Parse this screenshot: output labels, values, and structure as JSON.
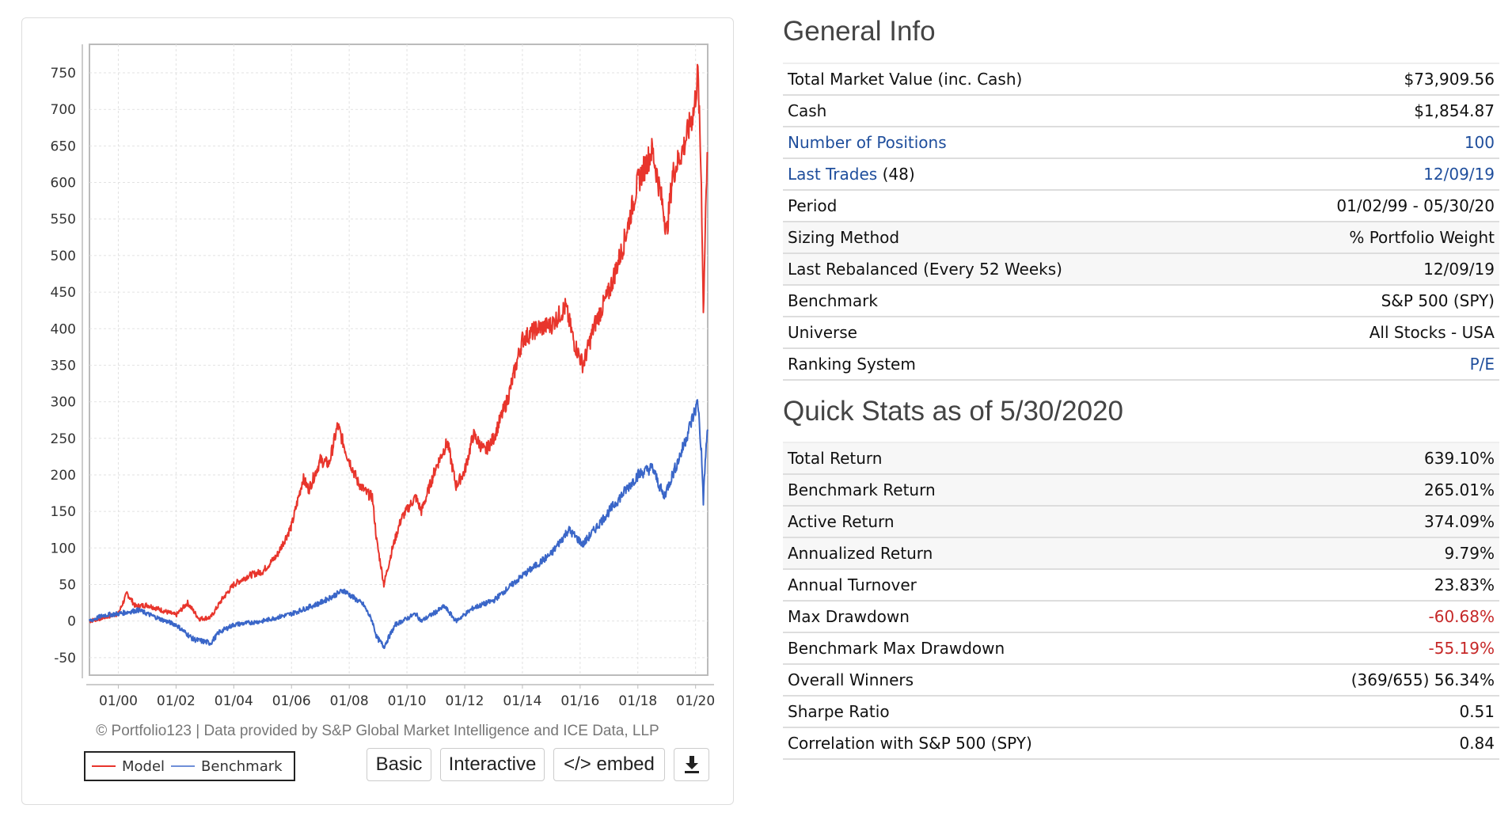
{
  "chart_data": {
    "type": "line",
    "title": "",
    "xlabel": "",
    "ylabel": "",
    "xlim": [
      1999.0,
      2020.42
    ],
    "ylim": [
      -74,
      789
    ],
    "grid": true,
    "yticks": [
      -50,
      0,
      50,
      100,
      150,
      200,
      250,
      300,
      350,
      400,
      450,
      500,
      550,
      600,
      650,
      700,
      750
    ],
    "xticks": [
      {
        "x": 2000,
        "label": "01/00"
      },
      {
        "x": 2002,
        "label": "01/02"
      },
      {
        "x": 2004,
        "label": "01/04"
      },
      {
        "x": 2006,
        "label": "01/06"
      },
      {
        "x": 2008,
        "label": "01/08"
      },
      {
        "x": 2010,
        "label": "01/10"
      },
      {
        "x": 2012,
        "label": "01/12"
      },
      {
        "x": 2014,
        "label": "01/14"
      },
      {
        "x": 2016,
        "label": "01/16"
      },
      {
        "x": 2018,
        "label": "01/18"
      },
      {
        "x": 2020,
        "label": "01/20"
      }
    ],
    "legend_placement": "bottom-left",
    "series": [
      {
        "name": "Model",
        "color": "#e8352c",
        "points": [
          [
            1999.0,
            0
          ],
          [
            1999.5,
            5
          ],
          [
            2000.0,
            10
          ],
          [
            2000.3,
            38
          ],
          [
            2000.6,
            20
          ],
          [
            2001.0,
            22
          ],
          [
            2001.5,
            15
          ],
          [
            2002.0,
            8
          ],
          [
            2002.4,
            25
          ],
          [
            2002.8,
            3
          ],
          [
            2003.2,
            5
          ],
          [
            2003.6,
            30
          ],
          [
            2004.0,
            50
          ],
          [
            2004.5,
            62
          ],
          [
            2005.0,
            68
          ],
          [
            2005.5,
            90
          ],
          [
            2006.0,
            130
          ],
          [
            2006.4,
            195
          ],
          [
            2006.6,
            180
          ],
          [
            2007.0,
            220
          ],
          [
            2007.3,
            215
          ],
          [
            2007.6,
            268
          ],
          [
            2007.9,
            230
          ],
          [
            2008.3,
            190
          ],
          [
            2008.6,
            175
          ],
          [
            2008.8,
            170
          ],
          [
            2008.95,
            110
          ],
          [
            2009.1,
            75
          ],
          [
            2009.2,
            50
          ],
          [
            2009.5,
            100
          ],
          [
            2009.8,
            140
          ],
          [
            2010.3,
            170
          ],
          [
            2010.5,
            150
          ],
          [
            2011.0,
            210
          ],
          [
            2011.4,
            245
          ],
          [
            2011.7,
            185
          ],
          [
            2012.0,
            205
          ],
          [
            2012.3,
            255
          ],
          [
            2012.7,
            232
          ],
          [
            2013.0,
            250
          ],
          [
            2013.5,
            305
          ],
          [
            2014.0,
            385
          ],
          [
            2014.5,
            400
          ],
          [
            2015.0,
            405
          ],
          [
            2015.5,
            430
          ],
          [
            2015.8,
            380
          ],
          [
            2016.1,
            350
          ],
          [
            2016.5,
            405
          ],
          [
            2017.0,
            450
          ],
          [
            2017.5,
            515
          ],
          [
            2018.0,
            600
          ],
          [
            2018.5,
            645
          ],
          [
            2018.9,
            560
          ],
          [
            2019.0,
            530
          ],
          [
            2019.2,
            610
          ],
          [
            2019.6,
            650
          ],
          [
            2019.95,
            700
          ],
          [
            2020.08,
            750
          ],
          [
            2020.2,
            600
          ],
          [
            2020.27,
            420
          ],
          [
            2020.35,
            570
          ],
          [
            2020.42,
            640
          ]
        ]
      },
      {
        "name": "Benchmark",
        "color": "#3a66c8",
        "points": [
          [
            1999.0,
            0
          ],
          [
            1999.5,
            8
          ],
          [
            2000.0,
            10
          ],
          [
            2000.7,
            15
          ],
          [
            2001.5,
            2
          ],
          [
            2002.0,
            -5
          ],
          [
            2002.6,
            -25
          ],
          [
            2003.2,
            -30
          ],
          [
            2003.5,
            -15
          ],
          [
            2004.0,
            -5
          ],
          [
            2005.0,
            0
          ],
          [
            2006.0,
            10
          ],
          [
            2007.0,
            25
          ],
          [
            2007.8,
            42
          ],
          [
            2008.5,
            22
          ],
          [
            2008.8,
            0
          ],
          [
            2008.95,
            -22
          ],
          [
            2009.2,
            -35
          ],
          [
            2009.6,
            -5
          ],
          [
            2010.3,
            10
          ],
          [
            2010.5,
            0
          ],
          [
            2011.3,
            20
          ],
          [
            2011.7,
            0
          ],
          [
            2012.3,
            18
          ],
          [
            2013.0,
            28
          ],
          [
            2014.0,
            62
          ],
          [
            2015.0,
            92
          ],
          [
            2015.6,
            125
          ],
          [
            2016.1,
            105
          ],
          [
            2017.0,
            150
          ],
          [
            2018.0,
            200
          ],
          [
            2018.5,
            210
          ],
          [
            2018.9,
            170
          ],
          [
            2019.1,
            190
          ],
          [
            2019.5,
            230
          ],
          [
            2020.08,
            300
          ],
          [
            2020.2,
            230
          ],
          [
            2020.27,
            165
          ],
          [
            2020.35,
            230
          ],
          [
            2020.42,
            262
          ]
        ]
      }
    ]
  },
  "chart_footer": {
    "copyright": "© Portfolio123 | Data provided by S&P Global Market Intelligence and ICE Data, LLP",
    "legend": [
      "Model",
      "Benchmark"
    ],
    "buttons": {
      "basic": "Basic",
      "interactive": "Interactive",
      "embed": "</> embed",
      "download_icon": "download-icon"
    }
  },
  "general_info": {
    "title": "General Info",
    "rows": [
      {
        "label": "Total Market Value (inc. Cash)",
        "value": "$73,909.56"
      },
      {
        "label": "Cash",
        "value": "$1,854.87"
      },
      {
        "label": "Number of Positions",
        "value": "100"
      },
      {
        "label": "Last Trades",
        "label_suffix": "(48)",
        "value": "12/09/19"
      },
      {
        "label": "Period",
        "value": "01/02/99 - 05/30/20"
      },
      {
        "label": "Sizing Method",
        "value": "% Portfolio Weight"
      },
      {
        "label": "Last Rebalanced (Every 52 Weeks)",
        "value": "12/09/19"
      },
      {
        "label": "Benchmark",
        "value": "S&P 500 (SPY)"
      },
      {
        "label": "Universe",
        "value": "All Stocks - USA"
      },
      {
        "label": "Ranking System",
        "value": "P/E"
      }
    ]
  },
  "quick_stats": {
    "title": "Quick Stats as of 5/30/2020",
    "rows": [
      {
        "label": "Total Return",
        "value": "639.10%"
      },
      {
        "label": "Benchmark Return",
        "value": "265.01%"
      },
      {
        "label": "Active Return",
        "value": "374.09%"
      },
      {
        "label": "Annualized Return",
        "value": "9.79%"
      },
      {
        "label": "Annual Turnover",
        "value": "23.83%"
      },
      {
        "label": "Max Drawdown",
        "value": "-60.68%"
      },
      {
        "label": "Benchmark Max Drawdown",
        "value": "-55.19%"
      },
      {
        "label": "Overall Winners",
        "value": "(369/655) 56.34%"
      },
      {
        "label": "Sharpe Ratio",
        "value": "0.51"
      },
      {
        "label": "Correlation with S&P 500 (SPY)",
        "value": "0.84"
      }
    ]
  },
  "colors": {
    "link": "#1f4e9c",
    "negative": "#c62828",
    "model": "#e8352c",
    "benchmark": "#3a66c8"
  }
}
